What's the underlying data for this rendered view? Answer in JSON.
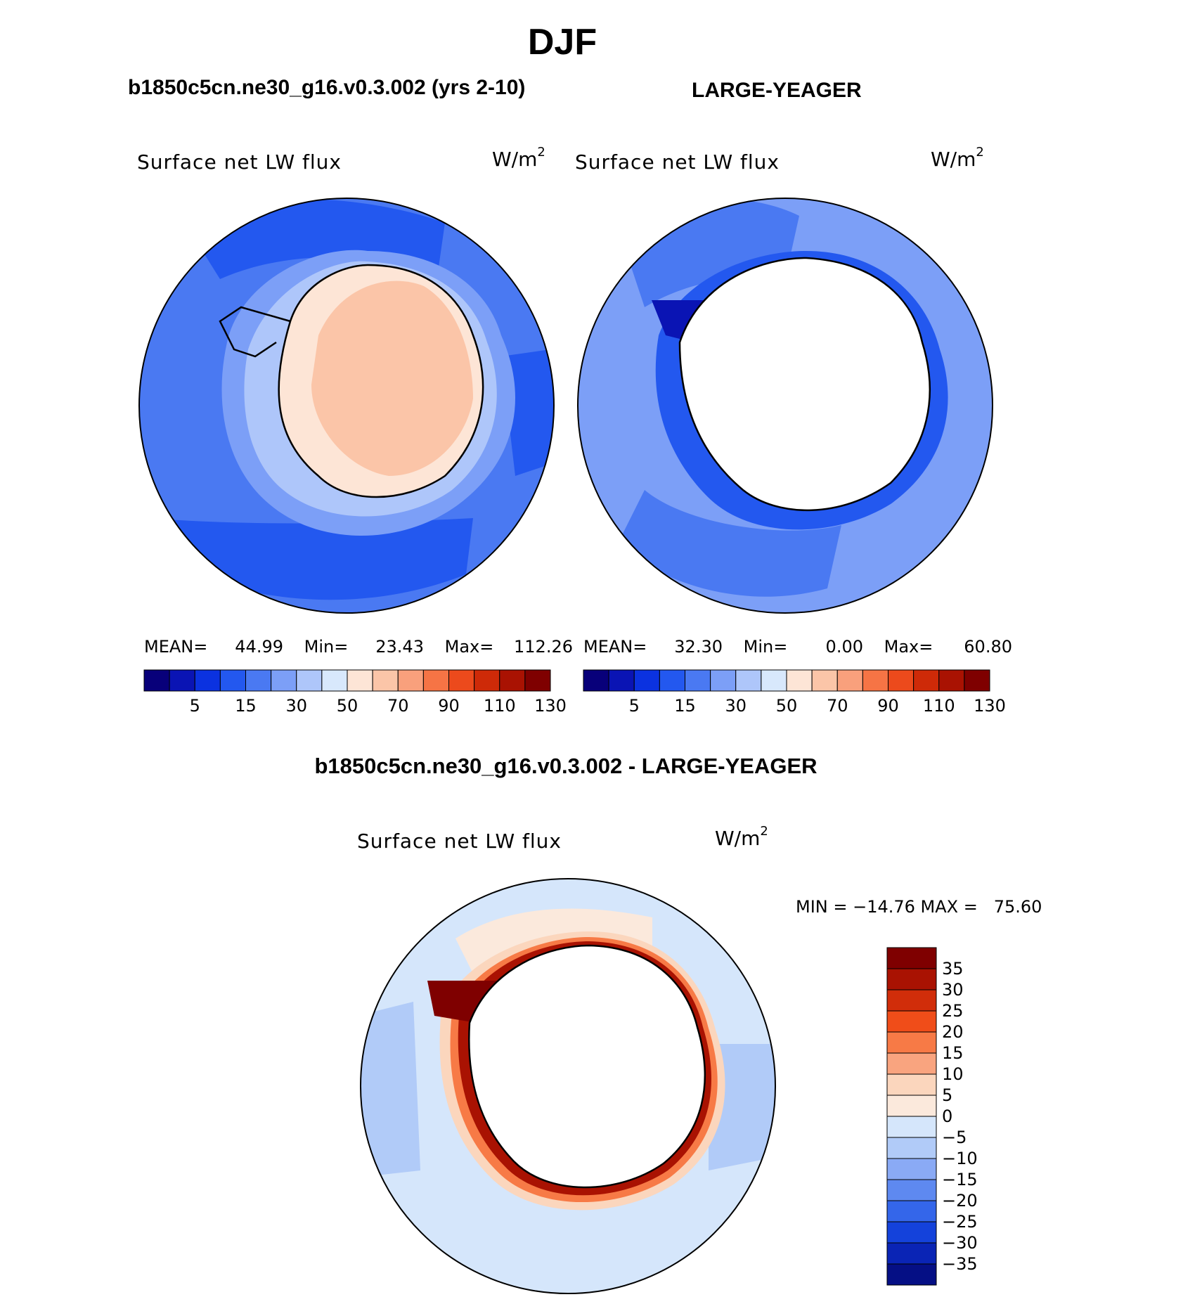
{
  "page_title": "DJF",
  "panels": {
    "left": {
      "title": "b1850c5cn.ne30_g16.v0.3.002 (yrs 2-10)",
      "variable": "Surface net LW flux",
      "units_base": "W/m",
      "units_exp": "2",
      "stats": {
        "mean_label": "MEAN=",
        "mean": "44.99",
        "min_label": "Min=",
        "min": "23.43",
        "max_label": "Max=",
        "max": "112.26"
      }
    },
    "right": {
      "title": "LARGE-YEAGER",
      "variable": "Surface net LW flux",
      "units_base": "W/m",
      "units_exp": "2",
      "stats": {
        "mean_label": "MEAN=",
        "mean": "32.30",
        "min_label": "Min=",
        "min": "0.00",
        "max_label": "Max=",
        "max": "60.80"
      }
    },
    "diff": {
      "title": "b1850c5cn.ne30_g16.v0.3.002 - LARGE-YEAGER",
      "variable": "Surface net LW flux",
      "units_base": "W/m",
      "units_exp": "2",
      "minmax_text": "MIN = −14.76 MAX =   75.60"
    }
  },
  "chart_data": [
    {
      "type": "heatmap",
      "projection": "south-polar-stereographic",
      "title": "b1850c5cn.ne30_g16.v0.3.002 (yrs 2-10)",
      "variable": "Surface net LW flux",
      "units": "W/m2",
      "mean": 44.99,
      "min": 23.43,
      "max": 112.26,
      "colorbar_ticks": [
        "5",
        "15",
        "30",
        "50",
        "70",
        "90",
        "110",
        "130"
      ],
      "colorbar_colors": [
        "#08007a",
        "#0a14b4",
        "#0b32e0",
        "#2358ef",
        "#4a79f2",
        "#7c9ff7",
        "#aec6fa",
        "#d8e8fc",
        "#fde5d6",
        "#fbc5a8",
        "#f9a07c",
        "#f67445",
        "#ec4a1c",
        "#ce2a08",
        "#a91202",
        "#7f0000"
      ],
      "regions": {
        "ocean_near": "Blue 40-60 W/m2 band",
        "antarctica": "Peach 60-80 W/m2"
      }
    },
    {
      "type": "heatmap",
      "projection": "south-polar-stereographic",
      "title": "LARGE-YEAGER",
      "variable": "Surface net LW flux",
      "units": "W/m2",
      "mean": 32.3,
      "min": 0.0,
      "max": 60.8,
      "colorbar_ticks": [
        "5",
        "15",
        "30",
        "50",
        "70",
        "90",
        "110",
        "130"
      ],
      "colorbar_colors": [
        "#08007a",
        "#0a14b4",
        "#0b32e0",
        "#2358ef",
        "#4a79f2",
        "#7c9ff7",
        "#aec6fa",
        "#d8e8fc",
        "#fde5d6",
        "#fbc5a8",
        "#f9a07c",
        "#f67445",
        "#ec4a1c",
        "#ce2a08",
        "#a91202",
        "#7f0000"
      ]
    },
    {
      "type": "heatmap",
      "projection": "south-polar-stereographic",
      "title": "b1850c5cn.ne30_g16.v0.3.002 - LARGE-YEAGER",
      "variable": "Surface net LW flux",
      "units": "W/m2",
      "min": -14.76,
      "max": 75.6,
      "colorbar_ticks": [
        "35",
        "30",
        "25",
        "20",
        "15",
        "10",
        "5",
        "0",
        "−5",
        "−10",
        "−15",
        "−20",
        "−25",
        "−30",
        "−35"
      ],
      "colorbar_colors": [
        "#7f0000",
        "#a91202",
        "#d12d0a",
        "#f04d19",
        "#f77a46",
        "#f9a47f",
        "#fbd6bd",
        "#fbe9dc",
        "#d5e6fb",
        "#b1cbf8",
        "#8aaaf5",
        "#5e89f0",
        "#3466ea",
        "#1442db",
        "#0a24b5",
        "#050f85"
      ]
    }
  ]
}
